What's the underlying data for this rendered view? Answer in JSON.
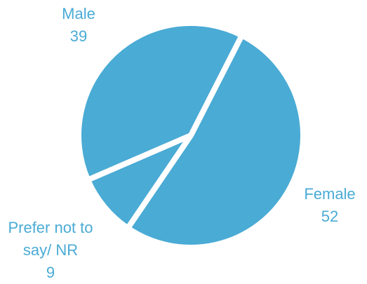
{
  "chart_data": {
    "type": "pie",
    "categories": [
      "Female",
      "Prefer not to say/ NR",
      "Male"
    ],
    "values": [
      52,
      9,
      39
    ],
    "color": "#4aabd5"
  }
}
